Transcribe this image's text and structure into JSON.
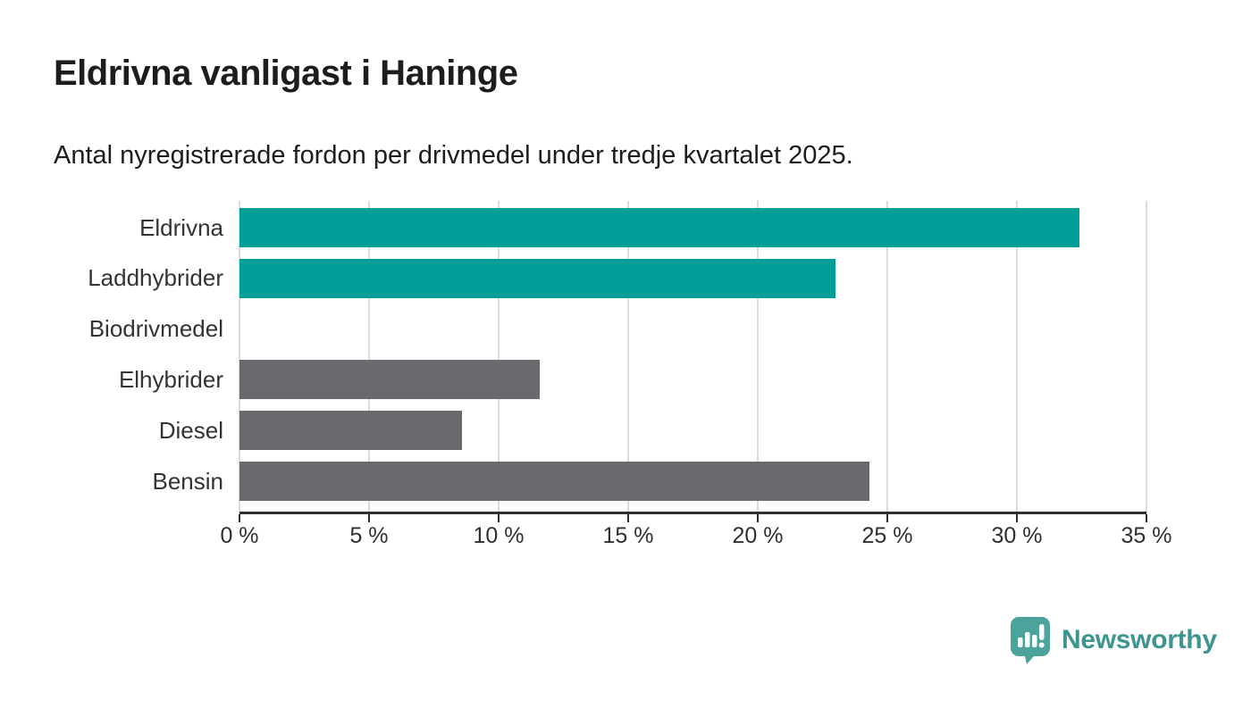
{
  "header": {
    "title": "Eldrivna vanligast i Haninge",
    "subtitle": "Antal nyregistrerade fordon per drivmedel under tredje kvartalet 2025."
  },
  "chart_data": {
    "type": "bar",
    "orientation": "horizontal",
    "title": "Eldrivna vanligast i Haninge",
    "subtitle": "Antal nyregistrerade fordon per drivmedel under tredje kvartalet 2025.",
    "categories": [
      "Eldrivna",
      "Laddhybrider",
      "Biodrivmedel",
      "Elhybrider",
      "Diesel",
      "Bensin"
    ],
    "values": [
      32.4,
      23.0,
      0,
      11.6,
      8.6,
      24.3
    ],
    "unit": "%",
    "bar_colors": [
      "#00a099",
      "#00a099",
      "#6a6a6e",
      "#6a6a6e",
      "#6a6a6e",
      "#6a6a6e"
    ],
    "xlim": [
      0,
      35
    ],
    "x_ticks": [
      0,
      5,
      10,
      15,
      20,
      25,
      30,
      35
    ],
    "x_tick_labels": [
      "0 %",
      "5 %",
      "10 %",
      "15 %",
      "20 %",
      "25 %",
      "30 %",
      "35 %"
    ],
    "grid": "vertical-gridlines-on",
    "legend": "none",
    "colors": {
      "highlight": "#00a099",
      "default": "#6a6a6e",
      "gridline": "#dcdcdc",
      "axis": "#2f2f2f",
      "text": "#333333"
    }
  },
  "branding": {
    "logo_text": "Newsworthy",
    "logo_text_color": "#3e948f",
    "logo_icon": "speech-bubble-bar-chart-icon",
    "logo_icon_color": "#4ba39c"
  }
}
